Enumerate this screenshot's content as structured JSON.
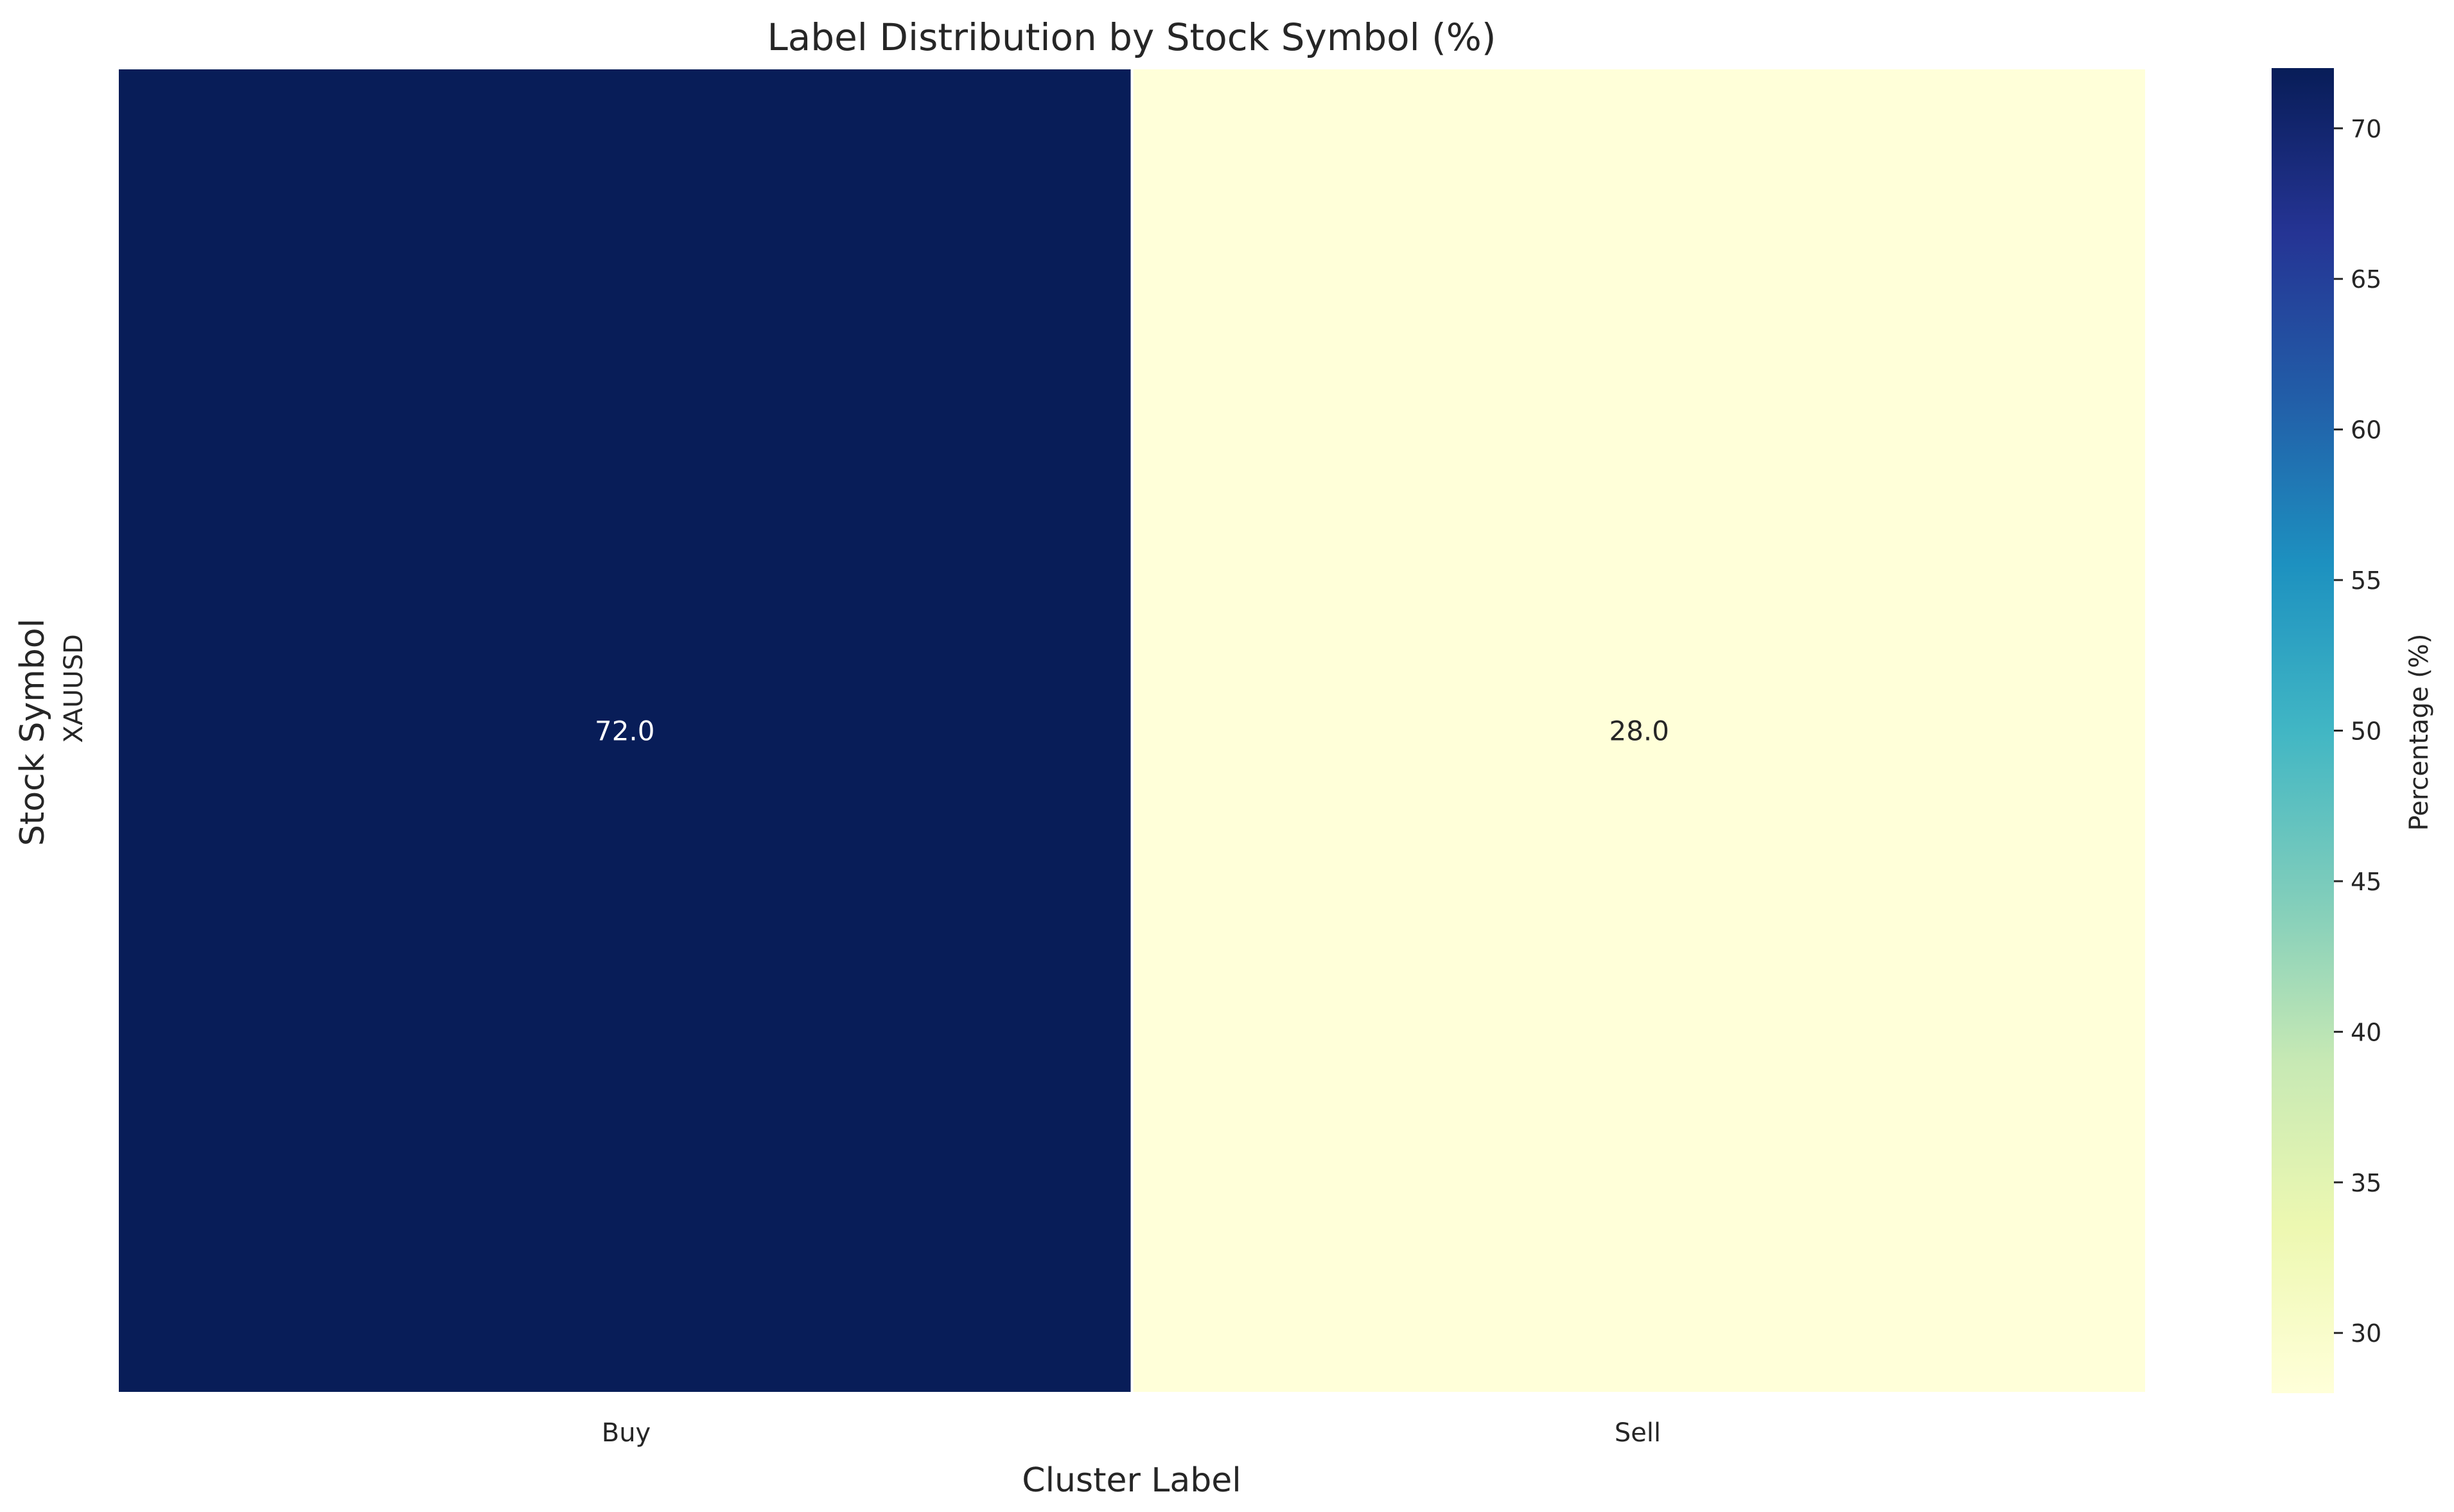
{
  "chart_data": {
    "type": "heatmap",
    "title": "Label Distribution by Stock Symbol (%)",
    "xlabel": "Cluster Label",
    "ylabel": "Stock Symbol",
    "x_categories": [
      "Buy",
      "Sell"
    ],
    "y_categories": [
      "XAUUSD"
    ],
    "values": [
      [
        72.0,
        28.0
      ]
    ],
    "annotations": [
      "72.0",
      "28.0"
    ],
    "colorscale": "YlGnBu",
    "colorbar": {
      "label": "Percentage (%)",
      "range": [
        28.0,
        72.0
      ],
      "ticks": [
        30,
        35,
        40,
        45,
        50,
        55,
        60,
        65,
        70
      ]
    },
    "cell_text_colors": [
      "#ffffff",
      "#262626"
    ],
    "grid": false
  }
}
